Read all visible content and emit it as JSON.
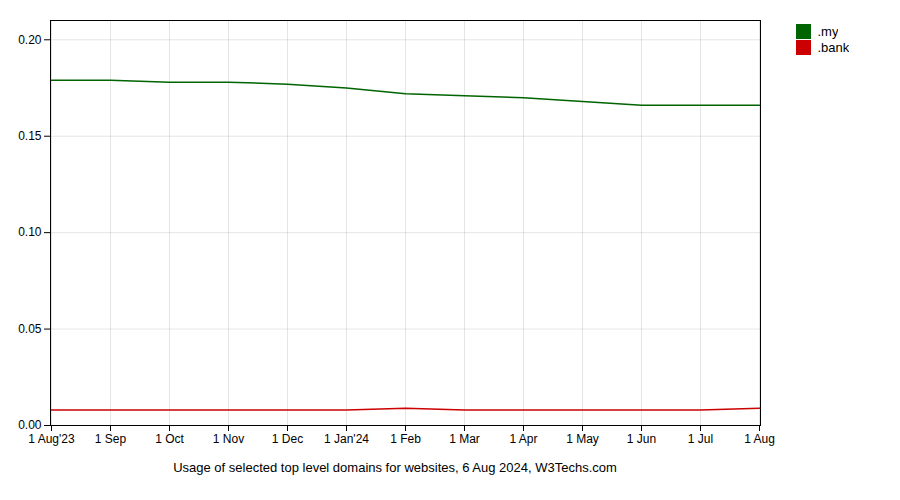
{
  "chart_data": {
    "type": "line",
    "title": "Usage of selected top level domains for websites, 6 Aug 2024, W3Techs.com",
    "categories": [
      "1 Aug'23",
      "1 Sep",
      "1 Oct",
      "1 Nov",
      "1 Dec",
      "1 Jan'24",
      "1 Feb",
      "1 Mar",
      "1 Apr",
      "1 May",
      "1 Jun",
      "1 Jul",
      "1 Aug"
    ],
    "series": [
      {
        "name": ".my",
        "color": "#006400",
        "values": [
          0.179,
          0.179,
          0.178,
          0.178,
          0.177,
          0.175,
          0.172,
          0.171,
          0.17,
          0.168,
          0.166,
          0.166,
          0.166
        ]
      },
      {
        "name": ".bank",
        "color": "#cc0000",
        "values": [
          0.008,
          0.008,
          0.008,
          0.008,
          0.008,
          0.008,
          0.009,
          0.008,
          0.008,
          0.008,
          0.008,
          0.008,
          0.009
        ]
      }
    ],
    "ylim": [
      0,
      0.21
    ],
    "yticks": [
      {
        "value": 0,
        "label": "0.00"
      },
      0.05,
      {
        "value": 0.1,
        "label": "0.10"
      },
      0.15,
      {
        "value": 0.2,
        "label": "0.20"
      }
    ],
    "grid": true,
    "legend": "right"
  }
}
